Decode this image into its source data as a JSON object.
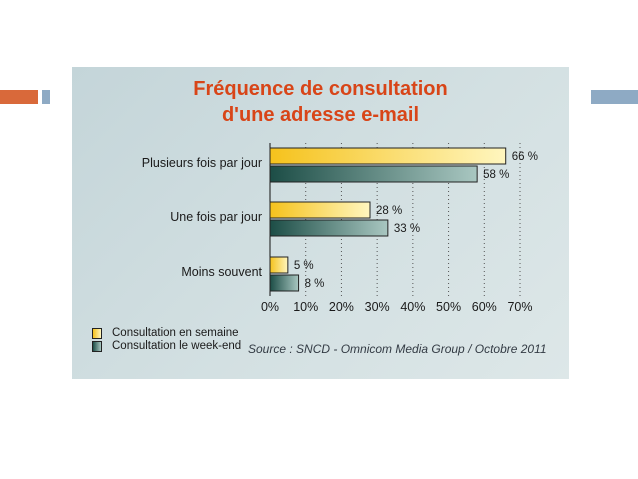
{
  "chart_data": {
    "type": "bar",
    "orientation": "horizontal",
    "title": "Fréquence de consultation d'une adresse e-mail",
    "title_lines": [
      "Fréquence de consultation",
      "d'une adresse e-mail"
    ],
    "categories": [
      "Plusieurs fois par jour",
      "Une fois par jour",
      "Moins souvent"
    ],
    "series": [
      {
        "name": "Consultation en semaine",
        "values": [
          66,
          28,
          5
        ],
        "labels": [
          "66 %",
          "28 %",
          "5 %"
        ],
        "color_start": "#f5c21c",
        "color_end": "#fff6bf"
      },
      {
        "name": "Consultation le week-end",
        "values": [
          58,
          33,
          8
        ],
        "labels": [
          "58 %",
          "33 %",
          "8 %"
        ],
        "color_start": "#1c4d46",
        "color_end": "#a9c7c1"
      }
    ],
    "xlim": [
      0,
      70
    ],
    "x_ticks": [
      0,
      10,
      20,
      30,
      40,
      50,
      60,
      70
    ],
    "x_tick_labels": [
      "0%",
      "10%",
      "20%",
      "30%",
      "40%",
      "50%",
      "60%",
      "70%"
    ],
    "grid": "vertical dotted",
    "legend_position": "bottom-left",
    "source": "Source : SNCD - Omnicom Media Group / Octobre 2011"
  },
  "colors": {
    "title": "#d84518",
    "accent_orange": "#d9693a",
    "accent_blue": "#8eaac4",
    "panel_background": "#cfdddf"
  }
}
